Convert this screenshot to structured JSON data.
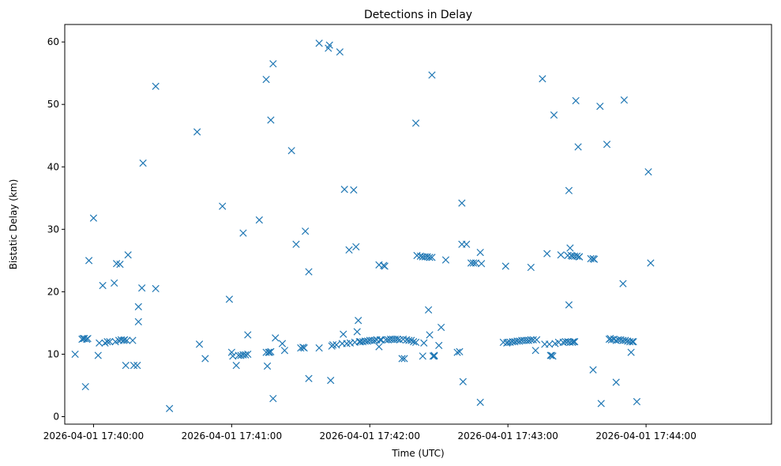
{
  "chart_data": {
    "type": "scatter",
    "title": "Detections in Delay",
    "xlabel": "Time (UTC)",
    "ylabel": "Bistatic Delay (km)",
    "marker": "x",
    "marker_color": "#1f77b4",
    "grid": false,
    "legend": "none",
    "x_unit": "seconds after 2026-04-01 17:39:00 UTC",
    "xlim": [
      47.5,
      354.5
    ],
    "ylim": [
      -1.2,
      62.8
    ],
    "x_ticks": [
      {
        "value": 60,
        "label": "2026-04-01 17:40:00"
      },
      {
        "value": 120,
        "label": "2026-04-01 17:41:00"
      },
      {
        "value": 180,
        "label": "2026-04-01 17:42:00"
      },
      {
        "value": 240,
        "label": "2026-04-01 17:43:00"
      },
      {
        "value": 300,
        "label": "2026-04-01 17:44:00"
      }
    ],
    "y_ticks": [
      {
        "value": 0,
        "label": "0"
      },
      {
        "value": 10,
        "label": "10"
      },
      {
        "value": 20,
        "label": "20"
      },
      {
        "value": 30,
        "label": "30"
      },
      {
        "value": 40,
        "label": "40"
      },
      {
        "value": 50,
        "label": "50"
      },
      {
        "value": 60,
        "label": "60"
      }
    ],
    "points": [
      [
        52,
        10
      ],
      [
        55,
        12.4
      ],
      [
        55.5,
        12.5
      ],
      [
        56,
        12.5
      ],
      [
        56.5,
        4.8
      ],
      [
        57,
        12.4
      ],
      [
        57.5,
        12.5
      ],
      [
        58,
        25
      ],
      [
        60,
        31.8
      ],
      [
        62,
        9.8
      ],
      [
        62.5,
        11.8
      ],
      [
        64,
        21
      ],
      [
        65,
        11.8
      ],
      [
        66,
        12
      ],
      [
        67,
        12
      ],
      [
        69,
        21.4
      ],
      [
        69.5,
        12
      ],
      [
        70,
        24.5
      ],
      [
        71,
        12.2
      ],
      [
        71.5,
        24.4
      ],
      [
        72,
        12.3
      ],
      [
        73,
        12.2
      ],
      [
        73.5,
        12.3
      ],
      [
        74,
        8.2
      ],
      [
        74.5,
        12.2
      ],
      [
        75,
        25.9
      ],
      [
        77,
        12.2
      ],
      [
        77.5,
        8.2
      ],
      [
        79,
        8.2
      ],
      [
        79.5,
        17.6
      ],
      [
        79.5,
        15.2
      ],
      [
        81,
        20.6
      ],
      [
        81.5,
        40.6
      ],
      [
        87,
        52.9
      ],
      [
        87,
        20.5
      ],
      [
        93,
        1.3
      ],
      [
        105,
        45.6
      ],
      [
        106,
        11.6
      ],
      [
        108.5,
        9.3
      ],
      [
        116,
        33.7
      ],
      [
        119,
        18.8
      ],
      [
        120,
        10.3
      ],
      [
        120.5,
        9.7
      ],
      [
        122,
        8.2
      ],
      [
        123,
        9.8
      ],
      [
        124,
        9.8
      ],
      [
        125,
        29.4
      ],
      [
        125,
        9.9
      ],
      [
        126,
        9.9
      ],
      [
        127,
        13.1
      ],
      [
        127,
        10
      ],
      [
        132,
        31.5
      ],
      [
        135,
        54
      ],
      [
        135,
        10.3
      ],
      [
        135.5,
        8.1
      ],
      [
        136,
        10.3
      ],
      [
        136.5,
        10.3
      ],
      [
        137,
        10.4
      ],
      [
        137,
        47.5
      ],
      [
        138,
        56.5
      ],
      [
        138,
        2.9
      ],
      [
        139,
        12.6
      ],
      [
        142,
        11.7
      ],
      [
        143,
        10.6
      ],
      [
        146,
        42.6
      ],
      [
        148,
        27.6
      ],
      [
        150,
        11
      ],
      [
        151,
        11.1
      ],
      [
        151.5,
        11
      ],
      [
        152,
        29.7
      ],
      [
        153.5,
        23.2
      ],
      [
        153.5,
        6.1
      ],
      [
        158,
        59.8
      ],
      [
        158,
        11
      ],
      [
        162,
        59
      ],
      [
        162.5,
        59.5
      ],
      [
        163,
        5.8
      ],
      [
        163.5,
        11.3
      ],
      [
        164,
        11.5
      ],
      [
        165.5,
        11.5
      ],
      [
        167,
        58.4
      ],
      [
        168,
        11.7
      ],
      [
        168.5,
        13.2
      ],
      [
        169,
        36.4
      ],
      [
        170,
        11.7
      ],
      [
        171,
        26.7
      ],
      [
        171.5,
        11.8
      ],
      [
        173,
        36.3
      ],
      [
        173.5,
        11.9
      ],
      [
        174,
        27.2
      ],
      [
        174.5,
        13.6
      ],
      [
        175,
        15.4
      ],
      [
        175.5,
        12
      ],
      [
        176,
        12
      ],
      [
        177,
        12
      ],
      [
        178,
        12.1
      ],
      [
        179,
        12.1
      ],
      [
        180,
        12.2
      ],
      [
        181,
        12.2
      ],
      [
        182,
        12.2
      ],
      [
        183,
        12.3
      ],
      [
        184,
        24.3
      ],
      [
        184,
        11.2
      ],
      [
        184.5,
        12.3
      ],
      [
        185,
        12.3
      ],
      [
        186,
        24.2
      ],
      [
        186.5,
        24.1
      ],
      [
        187,
        12.3
      ],
      [
        188,
        12.3
      ],
      [
        189,
        12.4
      ],
      [
        190,
        12.4
      ],
      [
        191,
        12.4
      ],
      [
        192,
        12.4
      ],
      [
        193,
        12.3
      ],
      [
        194,
        9.3
      ],
      [
        194.5,
        12.4
      ],
      [
        195,
        9.3
      ],
      [
        196,
        12.3
      ],
      [
        197,
        12.2
      ],
      [
        198,
        12.2
      ],
      [
        199,
        12
      ],
      [
        200,
        11.9
      ],
      [
        200,
        47
      ],
      [
        200.5,
        25.8
      ],
      [
        202,
        25.7
      ],
      [
        203,
        25.6
      ],
      [
        203,
        9.7
      ],
      [
        203.5,
        11.8
      ],
      [
        204,
        25.6
      ],
      [
        205,
        25.6
      ],
      [
        205.5,
        17.1
      ],
      [
        206,
        25.5
      ],
      [
        206,
        13.1
      ],
      [
        207,
        54.7
      ],
      [
        207,
        25.5
      ],
      [
        207.5,
        9.7
      ],
      [
        208,
        9.8
      ],
      [
        208,
        9.7
      ],
      [
        210,
        11.4
      ],
      [
        211,
        14.3
      ],
      [
        213,
        25.1
      ],
      [
        218,
        10.3
      ],
      [
        219,
        10.4
      ],
      [
        220,
        34.2
      ],
      [
        220,
        27.6
      ],
      [
        220.5,
        5.6
      ],
      [
        222,
        27.6
      ],
      [
        224,
        24.6
      ],
      [
        225,
        24.6
      ],
      [
        226,
        24.6
      ],
      [
        228,
        26.3
      ],
      [
        228,
        2.3
      ],
      [
        228.5,
        24.5
      ],
      [
        238,
        11.9
      ],
      [
        239,
        24.1
      ],
      [
        239.5,
        11.8
      ],
      [
        240,
        11.9
      ],
      [
        241,
        11.9
      ],
      [
        242,
        12
      ],
      [
        243,
        12
      ],
      [
        244,
        12.1
      ],
      [
        245,
        12.1
      ],
      [
        246,
        12.2
      ],
      [
        247,
        12.2
      ],
      [
        248,
        12.2
      ],
      [
        249,
        12.2
      ],
      [
        250,
        12.3
      ],
      [
        250,
        23.9
      ],
      [
        251,
        12.3
      ],
      [
        252,
        10.6
      ],
      [
        252.5,
        12.3
      ],
      [
        255,
        54.1
      ],
      [
        256,
        11.6
      ],
      [
        257,
        26.1
      ],
      [
        258,
        11.6
      ],
      [
        258.5,
        9.8
      ],
      [
        259,
        9.8
      ],
      [
        259.5,
        9.7
      ],
      [
        260,
        48.3
      ],
      [
        260.5,
        11.7
      ],
      [
        262,
        11.9
      ],
      [
        263,
        25.9
      ],
      [
        264,
        11.9
      ],
      [
        265,
        12
      ],
      [
        266,
        25.8
      ],
      [
        266,
        12
      ],
      [
        266.5,
        36.2
      ],
      [
        266.5,
        17.9
      ],
      [
        267,
        27
      ],
      [
        267,
        11.9
      ],
      [
        267.5,
        25.8
      ],
      [
        268,
        11.9
      ],
      [
        268,
        25.7
      ],
      [
        268.5,
        12
      ],
      [
        269,
        25.7
      ],
      [
        269,
        12
      ],
      [
        269.5,
        50.6
      ],
      [
        270,
        25.7
      ],
      [
        270.5,
        43.2
      ],
      [
        271,
        25.6
      ],
      [
        271,
        25.6
      ],
      [
        276,
        25.3
      ],
      [
        277,
        25.3
      ],
      [
        277,
        7.5
      ],
      [
        277.5,
        25.2
      ],
      [
        280,
        49.7
      ],
      [
        280.5,
        2.1
      ],
      [
        283,
        43.6
      ],
      [
        284,
        12.4
      ],
      [
        284.5,
        12.5
      ],
      [
        285,
        12.3
      ],
      [
        286,
        12.4
      ],
      [
        287,
        5.5
      ],
      [
        287,
        12.2
      ],
      [
        288,
        12.3
      ],
      [
        289,
        12.3
      ],
      [
        290,
        12.2
      ],
      [
        290.5,
        50.7
      ],
      [
        290,
        21.3
      ],
      [
        291,
        12.2
      ],
      [
        292,
        12.1
      ],
      [
        293,
        12
      ],
      [
        293.5,
        10.3
      ],
      [
        294,
        12
      ],
      [
        294.5,
        12
      ],
      [
        296,
        2.4
      ],
      [
        301,
        39.2
      ],
      [
        302,
        24.6
      ]
    ]
  }
}
